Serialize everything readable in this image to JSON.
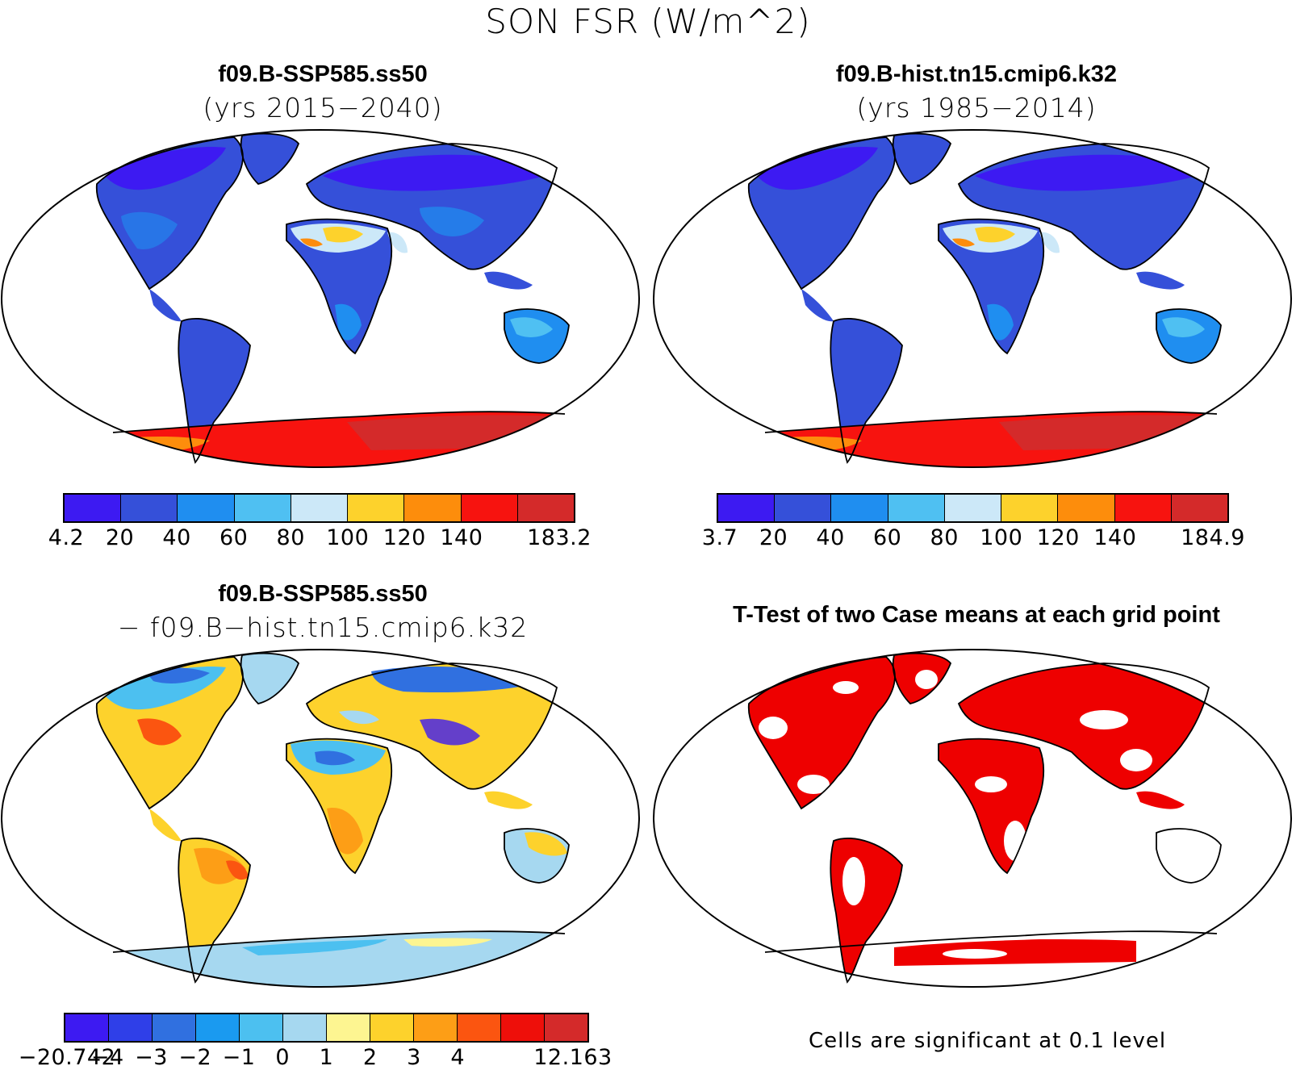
{
  "title": "SON FSR (W/m^2)",
  "panels": [
    {
      "id": "p1",
      "title": "f09.B-SSP585.ss50",
      "subtitle": "(yrs 2015−2040)"
    },
    {
      "id": "p2",
      "title": "f09.B-hist.tn15.cmip6.k32",
      "subtitle": "(yrs 1985−2014)"
    },
    {
      "id": "p3",
      "title": "f09.B-SSP585.ss50",
      "subtitle": "− f09.B−hist.tn15.cmip6.k32"
    },
    {
      "id": "p4",
      "title": "T-Test of two Case means at each grid point",
      "subtitle": ""
    }
  ],
  "colorbars": {
    "abs_colors": [
      "#3d1af2",
      "#3550d9",
      "#1f8ef0",
      "#4fc0f2",
      "#cce8f8",
      "#fdd22c",
      "#fd8d0c",
      "#f7130f",
      "#d42a2a"
    ],
    "diff_colors": [
      "#3d1af2",
      "#2f3fe8",
      "#3070e0",
      "#1a9af0",
      "#4cc0f0",
      "#a6d8f0",
      "#fdf591",
      "#fdd22c",
      "#fd9e16",
      "#fb5510",
      "#ee0f0a",
      "#d42a2a"
    ],
    "p1_ticks": [
      "4.2",
      "20",
      "40",
      "60",
      "80",
      "100",
      "120",
      "140",
      "183.2"
    ],
    "p2_ticks": [
      "3.7",
      "20",
      "40",
      "60",
      "80",
      "100",
      "120",
      "140",
      "184.9"
    ],
    "p3_ticks": [
      "−20.742",
      "−4",
      "−3",
      "−2",
      "−1",
      "0",
      "1",
      "2",
      "3",
      "4",
      "12.163"
    ]
  },
  "significance_note": "Cells are significant at 0.1 level",
  "significance_color": "#ee0000"
}
